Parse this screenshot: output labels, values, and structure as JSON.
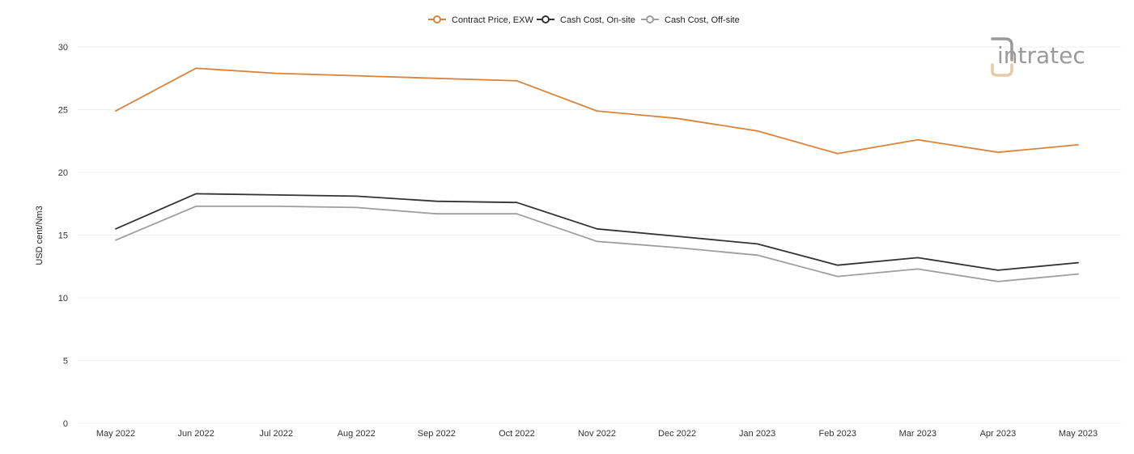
{
  "chart_data": {
    "type": "line",
    "title": "",
    "xlabel": "",
    "ylabel": "USD cent/Nm3",
    "ylim": [
      0,
      30
    ],
    "yticks": [
      0,
      5,
      10,
      15,
      20,
      25,
      30
    ],
    "grid": true,
    "legend_position": "top-center",
    "categories": [
      "May 2022",
      "Jun 2022",
      "Jul 2022",
      "Aug 2022",
      "Sep 2022",
      "Oct 2022",
      "Nov 2022",
      "Dec 2022",
      "Jan 2023",
      "Feb 2023",
      "Mar 2023",
      "Apr 2023",
      "May 2023"
    ],
    "series": [
      {
        "name": "Contract Price, EXW",
        "color": "#d9843e",
        "values": [
          24.9,
          28.3,
          27.9,
          27.7,
          27.5,
          27.3,
          24.9,
          24.3,
          23.3,
          21.5,
          22.6,
          21.6,
          22.2
        ]
      },
      {
        "name": "Cash Cost, On-site",
        "color": "#333333",
        "values": [
          15.5,
          18.3,
          18.2,
          18.1,
          17.7,
          17.6,
          15.5,
          14.9,
          14.3,
          12.6,
          13.2,
          12.2,
          12.8
        ]
      },
      {
        "name": "Cash Cost, Off-site",
        "color": "#9e9e9e",
        "values": [
          14.6,
          17.3,
          17.3,
          17.2,
          16.7,
          16.7,
          14.5,
          14.0,
          13.4,
          11.7,
          12.3,
          11.3,
          11.9
        ]
      }
    ]
  },
  "logo": {
    "text": "intratec",
    "color": "#9a9a9a",
    "accent": "#e8c9a8"
  }
}
